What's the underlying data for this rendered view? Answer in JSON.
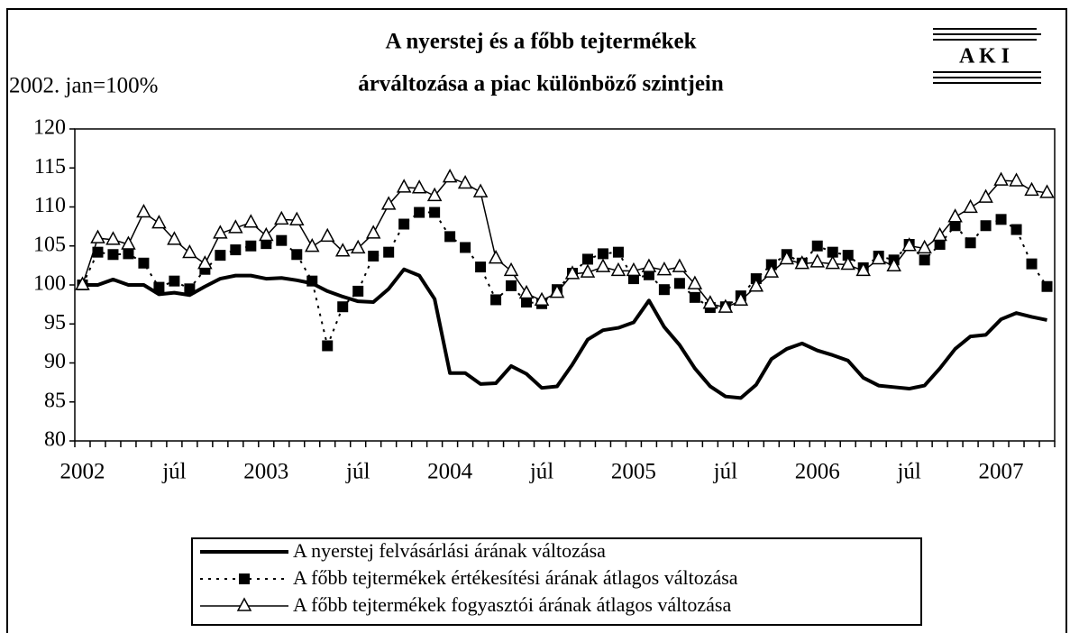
{
  "chart_data": {
    "type": "line",
    "title": [
      "A nyerstej és a főbb tejtermékek",
      "árváltozása a piac különböző szintjein"
    ],
    "y_axis_label": "2002. jan=100%",
    "logo": "A K I",
    "categories": [
      "2002",
      null,
      null,
      null,
      null,
      null,
      "júl",
      null,
      null,
      null,
      null,
      null,
      "2003",
      null,
      null,
      null,
      null,
      null,
      "júl",
      null,
      null,
      null,
      null,
      null,
      "2004",
      null,
      null,
      null,
      null,
      null,
      "júl",
      null,
      null,
      null,
      null,
      null,
      "2005",
      null,
      null,
      null,
      null,
      null,
      "júl",
      null,
      null,
      null,
      null,
      null,
      "2006",
      null,
      null,
      null,
      null,
      null,
      "júl",
      null,
      null,
      null,
      null,
      null,
      "2007",
      null,
      null,
      null
    ],
    "ylim": [
      80,
      120
    ],
    "yticks": [
      80,
      85,
      90,
      95,
      100,
      105,
      110,
      115,
      120
    ],
    "grid": false,
    "legend": "bottom",
    "series": [
      {
        "name": "A nyerstej felvásárlási árának változása",
        "color": "#000000",
        "line_style": "solid",
        "line_width": 4,
        "marker": "none",
        "values": [
          100,
          100,
          100.7,
          100,
          100,
          98.8,
          99,
          98.7,
          99.8,
          100.8,
          101.2,
          101.2,
          100.8,
          100.9,
          100.6,
          100.2,
          99.2,
          98.5,
          97.9,
          97.8,
          99.5,
          102,
          101.2,
          98.2,
          88.7,
          88.7,
          87.3,
          87.4,
          89.6,
          88.6,
          86.8,
          87,
          89.8,
          93,
          94.2,
          94.5,
          95.2,
          98,
          94.6,
          92.3,
          89.3,
          87,
          85.7,
          85.5,
          87.2,
          90.5,
          91.8,
          92.5,
          91.6,
          91,
          90.3,
          88.1,
          87.1,
          86.9,
          86.7,
          87.1,
          89.3,
          91.8,
          93.4,
          93.6,
          95.6,
          96.4,
          95.9,
          95.5
        ]
      },
      {
        "name": "A főbb tejtermékek értékesítési árának átlagos változása",
        "color": "#000000",
        "line_style": "dotted",
        "line_width": 2,
        "marker": "square",
        "values": [
          100,
          104.2,
          103.9,
          104,
          102.8,
          99.7,
          100.5,
          99.5,
          102,
          103.8,
          104.5,
          105,
          105.3,
          105.7,
          103.9,
          100.5,
          92.2,
          97.2,
          99.2,
          103.7,
          104.2,
          107.8,
          109.3,
          109.3,
          106.2,
          104.8,
          102.3,
          98.1,
          99.9,
          97.8,
          97.6,
          99.4,
          101.5,
          103.3,
          104,
          104.2,
          100.8,
          101.3,
          99.4,
          100.2,
          98.4,
          97.1,
          97.2,
          98.6,
          100.8,
          102.6,
          103.9,
          102.8,
          105,
          104.2,
          103.8,
          102.2,
          103.7,
          103.2,
          105.2,
          103.2,
          105.2,
          107.6,
          105.4,
          107.6,
          108.4,
          107.1,
          102.7,
          99.8
        ]
      },
      {
        "name": "A főbb tejtermékek fogyasztói árának átlagos változása",
        "color": "#000000",
        "line_style": "solid",
        "line_width": 1.5,
        "marker": "triangle",
        "values": [
          100,
          106,
          105.8,
          105.2,
          109.3,
          107.9,
          105.8,
          104.1,
          102.7,
          106.6,
          107.3,
          108,
          106.3,
          108.4,
          108.3,
          104.9,
          106.2,
          104.3,
          104.7,
          106.6,
          110.3,
          112.5,
          112.4,
          111.4,
          113.8,
          113,
          111.9,
          103.4,
          101.8,
          98.9,
          98,
          99,
          101.4,
          101.6,
          102.3,
          101.8,
          101.8,
          102.3,
          101.9,
          102.3,
          100.1,
          97.6,
          97.1,
          98,
          99.8,
          101.6,
          103.3,
          102.7,
          102.9,
          102.7,
          102.6,
          101.8,
          103.3,
          102.4,
          105,
          104.7,
          106.3,
          108.7,
          109.9,
          111.2,
          113.4,
          113.3,
          112.1,
          111.8
        ]
      }
    ]
  }
}
